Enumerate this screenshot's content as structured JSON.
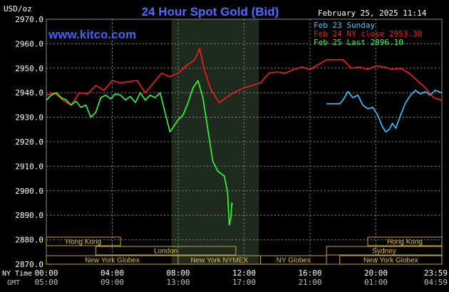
{
  "header": {
    "title": "24 Hour Spot Gold (Bid)",
    "y_unit": "USD/oz",
    "timestamp": "February 25, 2025 11:14",
    "watermark": "www.kitco.com"
  },
  "legend": [
    {
      "label": "Feb 23 Sunday",
      "color": "#33ccff"
    },
    {
      "label": "Feb 24 NY close 2953.30",
      "color": "#ff1a1a"
    },
    {
      "label": "Feb 25 Last 2896.10",
      "color": "#33ff33"
    }
  ],
  "colors": {
    "background": "#000000",
    "grid": "#8a8a8a",
    "title": "#4d6dff",
    "watermark": "#3a63ff",
    "axis_text": "#ffffff",
    "gmt_text": "#bfbfbf",
    "session_border": "#c8a030",
    "session_text": "#e0c050",
    "highlight": "#1e2a1e"
  },
  "chart_data": {
    "type": "line",
    "ylim": [
      2870,
      2970
    ],
    "yticks": [
      "2970.0",
      "2960.0",
      "2950.0",
      "2940.0",
      "2930.0",
      "2920.0",
      "2910.0",
      "2900.0",
      "2890.0",
      "2880.0",
      "2870.0"
    ],
    "xlim": [
      0,
      24
    ],
    "x_axis_rows": [
      {
        "label": "NY Time",
        "ticks": [
          "00:00",
          "04:00",
          "08:00",
          "12:00",
          "16:00",
          "20:00",
          "23:59"
        ]
      },
      {
        "label": "GMT",
        "ticks": [
          "05:00",
          "09:00",
          "13:00",
          "17:00",
          "21:00",
          "01:00",
          "04:59"
        ]
      }
    ],
    "highlight_range": [
      7.6,
      12.9
    ],
    "sessions": [
      {
        "name": "Hong Kong",
        "start": 0,
        "end": 4.5,
        "row": 0
      },
      {
        "name": "London",
        "start": 3.0,
        "end": 11.5,
        "row": 1
      },
      {
        "name": "New York Globex",
        "start": 0,
        "end": 8.0,
        "row": 2
      },
      {
        "name": "New York NYMEX",
        "start": 8.0,
        "end": 13.0,
        "row": 2
      },
      {
        "name": "NY Globex",
        "start": 13.0,
        "end": 17.0,
        "row": 2
      },
      {
        "name": "Sydney",
        "start": 17.0,
        "end": 24,
        "row": 1
      },
      {
        "name": "Hong Kong",
        "start": 19.5,
        "end": 24,
        "row": 0
      },
      {
        "name": "New York Globex",
        "start": 17.8,
        "end": 24,
        "row": 2
      }
    ],
    "series": [
      {
        "name": "Feb 23 Sunday",
        "color": "#33ccff",
        "x": [
          17.0,
          17.6,
          17.8,
          18.0,
          18.3,
          18.6,
          18.9,
          19.2,
          19.5,
          19.8,
          20.1,
          20.4,
          20.6,
          20.8,
          21.0,
          21.2,
          21.5,
          21.8,
          22.1,
          22.4,
          22.7,
          23.0,
          23.3,
          23.6,
          23.99
        ],
        "values": [
          2935.5,
          2935.5,
          2935.5,
          2937.0,
          2940.5,
          2938.0,
          2939.0,
          2935.0,
          2933.5,
          2934.0,
          2931.0,
          2926.0,
          2924.0,
          2925.0,
          2927.5,
          2925.5,
          2931.0,
          2936.0,
          2939.0,
          2941.0,
          2939.5,
          2940.5,
          2939.0,
          2941.0,
          2940.0
        ]
      },
      {
        "name": "Feb 24 NY close 2953.30",
        "color": "#ff1a1a",
        "x": [
          0,
          0.5,
          1.0,
          1.5,
          2.0,
          2.5,
          3.0,
          3.5,
          4.0,
          4.5,
          5.0,
          5.5,
          6.0,
          6.5,
          7.0,
          7.5,
          8.0,
          8.5,
          9.0,
          9.3,
          9.6,
          10.0,
          10.5,
          11.0,
          11.5,
          12.0,
          12.5,
          13.0,
          13.5,
          14.0,
          14.5,
          15.0,
          15.5,
          16.0,
          16.5,
          17.0,
          17.5,
          18.0,
          18.5,
          19.0,
          19.5,
          20.0,
          20.5,
          21.0,
          21.5,
          22.0,
          22.5,
          23.0,
          23.5,
          23.99
        ],
        "values": [
          2939.0,
          2940.0,
          2937.0,
          2935.0,
          2940.0,
          2939.5,
          2943.0,
          2941.0,
          2945.0,
          2944.0,
          2944.5,
          2945.0,
          2940.0,
          2944.0,
          2948.0,
          2946.5,
          2948.0,
          2951.0,
          2953.5,
          2958.0,
          2949.0,
          2941.0,
          2936.0,
          2938.5,
          2940.5,
          2942.0,
          2943.0,
          2944.0,
          2948.0,
          2948.5,
          2948.0,
          2949.5,
          2950.5,
          2949.5,
          2951.5,
          2953.5,
          2953.5,
          2953.5,
          2950.0,
          2950.5,
          2949.5,
          2951.0,
          2950.5,
          2949.5,
          2950.0,
          2948.0,
          2945.0,
          2942.0,
          2938.0,
          2937.0
        ]
      },
      {
        "name": "Feb 25 Last 2896.10",
        "color": "#33ff33",
        "x": [
          0,
          0.3,
          0.6,
          0.9,
          1.2,
          1.5,
          1.8,
          2.1,
          2.4,
          2.7,
          3.0,
          3.3,
          3.6,
          3.9,
          4.2,
          4.5,
          4.8,
          5.1,
          5.4,
          5.7,
          6.0,
          6.3,
          6.6,
          6.9,
          7.2,
          7.5,
          7.8,
          8.0,
          8.3,
          8.6,
          8.9,
          9.2,
          9.5,
          9.8,
          10.1,
          10.4,
          10.6,
          10.8,
          11.0,
          11.1,
          11.2,
          11.25,
          11.3
        ],
        "values": [
          2937.0,
          2939.0,
          2940.0,
          2938.0,
          2937.0,
          2935.0,
          2936.5,
          2934.0,
          2935.0,
          2930.0,
          2932.0,
          2938.0,
          2939.0,
          2937.5,
          2939.5,
          2939.0,
          2937.0,
          2938.5,
          2936.0,
          2940.0,
          2937.0,
          2939.0,
          2938.0,
          2940.0,
          2932.0,
          2924.0,
          2927.0,
          2929.0,
          2931.0,
          2936.0,
          2942.0,
          2945.0,
          2938.0,
          2925.0,
          2912.0,
          2908.0,
          2907.0,
          2906.0,
          2899.0,
          2886.0,
          2889.0,
          2895.0,
          2894.0
        ]
      }
    ]
  }
}
